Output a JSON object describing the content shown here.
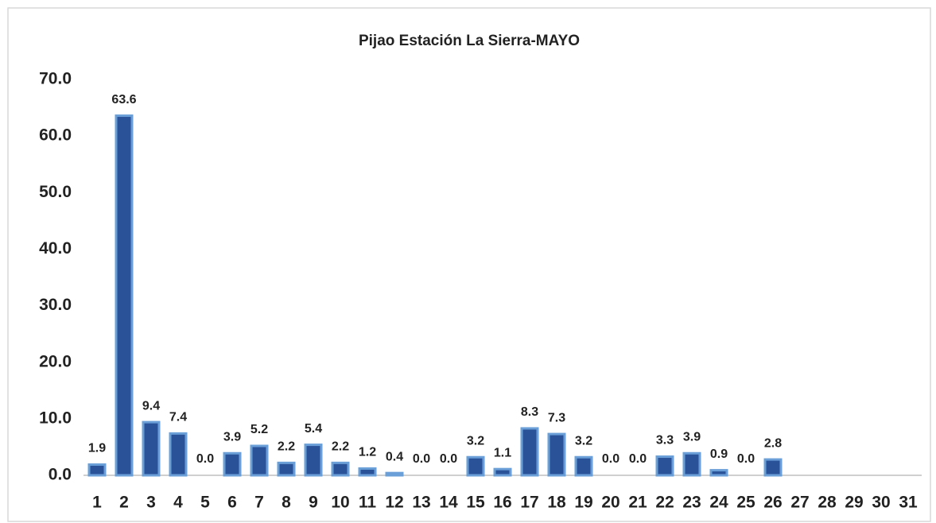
{
  "chart_data": {
    "type": "bar",
    "title": "Pijao Estación La Sierra-MAYO",
    "categories": [
      "1",
      "2",
      "3",
      "4",
      "5",
      "6",
      "7",
      "8",
      "9",
      "10",
      "11",
      "12",
      "13",
      "14",
      "15",
      "16",
      "17",
      "18",
      "19",
      "20",
      "21",
      "22",
      "23",
      "24",
      "25",
      "26",
      "27",
      "28",
      "29",
      "30",
      "31"
    ],
    "values": [
      1.9,
      63.6,
      9.4,
      7.4,
      0,
      3.9,
      5.2,
      2.2,
      5.4,
      2.2,
      1.2,
      0.4,
      0,
      0,
      3.2,
      1.1,
      8.3,
      7.3,
      3.2,
      0,
      0,
      3.3,
      3.9,
      0.9,
      0,
      2.8,
      null,
      null,
      null,
      null,
      null
    ],
    "value_labels": [
      "1.9",
      "63.6",
      "9.4",
      "7.4",
      "0.0",
      "3.9",
      "5.2",
      "2.2",
      "5.4",
      "2.2",
      "1.2",
      "0.4",
      "0.0",
      "0.0",
      "3.2",
      "1.1",
      "8.3",
      "7.3",
      "3.2",
      "0.0",
      "0.0",
      "3.3",
      "3.9",
      "0.9",
      "0.0",
      "2.8",
      null,
      null,
      null,
      null,
      null
    ],
    "color": "#2a5298",
    "edge_color": "#6a9fd8",
    "ylim": [
      0,
      70
    ],
    "yticks": [
      {
        "value": 0,
        "label": "0.0"
      },
      {
        "value": 10,
        "label": "10.0"
      },
      {
        "value": 20,
        "label": "20.0"
      },
      {
        "value": 30,
        "label": "30.0"
      },
      {
        "value": 40,
        "label": "40.0"
      },
      {
        "value": 50,
        "label": "50.0"
      },
      {
        "value": 60,
        "label": "60.0"
      },
      {
        "value": 70,
        "label": "70.0"
      }
    ],
    "grid": false
  }
}
